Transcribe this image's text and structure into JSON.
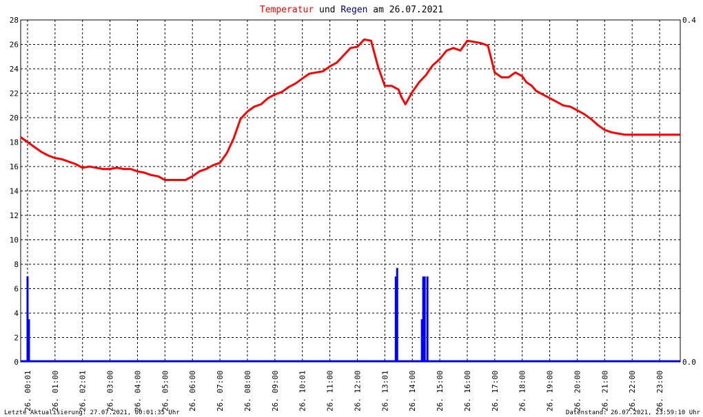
{
  "title": {
    "part1": "Temperatur",
    "part2": " und ",
    "part3": "Regen",
    "part4": " am 26.07.2021",
    "color_temp": "#ff0000",
    "color_rain": "#000080",
    "color_text": "#000000"
  },
  "footer": {
    "left": "Letzte Aktualisierung: 27.07.2021, 00:01:35 Uhr",
    "right": "Datenstand: 26.07.2021, 23:59:10 Uhr"
  },
  "chart_data": {
    "type": "line",
    "x_unit": "hours",
    "x_range": [
      0,
      24
    ],
    "y_left": {
      "range": [
        0,
        28
      ],
      "ticks": [
        0,
        2,
        4,
        6,
        8,
        10,
        12,
        14,
        16,
        18,
        20,
        22,
        24,
        26,
        28
      ]
    },
    "y_right": {
      "range": [
        0,
        0.4
      ],
      "tick_labels": [
        "0.0",
        "0.4"
      ]
    },
    "x_tick_labels": [
      "26. 00:01",
      "26. 01:00",
      "26. 02:01",
      "26. 03:00",
      "26. 04:00",
      "26. 05:00",
      "26. 06:00",
      "26. 07:00",
      "26. 08:00",
      "26. 09:00",
      "26. 10:01",
      "26. 11:00",
      "26. 12:00",
      "26. 13:01",
      "26. 14:00",
      "26. 15:00",
      "26. 16:00",
      "26. 17:00",
      "26. 18:00",
      "26. 19:00",
      "26. 20:00",
      "26. 21:00",
      "26. 22:00",
      "26. 23:00"
    ],
    "grid": true,
    "series": [
      {
        "color": "#ff0000",
        "axis": "left",
        "x": [
          0,
          0.25,
          0.5,
          0.75,
          1.0,
          1.25,
          1.5,
          1.75,
          2.0,
          2.25,
          2.5,
          2.75,
          3.0,
          3.25,
          3.5,
          3.75,
          4.0,
          4.25,
          4.5,
          4.75,
          5.0,
          5.25,
          5.5,
          5.75,
          6.0,
          6.25,
          6.5,
          6.75,
          7.0,
          7.25,
          7.5,
          7.75,
          8.0,
          8.25,
          8.5,
          8.75,
          9.0,
          9.25,
          9.5,
          9.75,
          10.0,
          10.25,
          10.5,
          10.75,
          11.0,
          11.25,
          11.5,
          11.75,
          12.0,
          12.25,
          12.5,
          12.75,
          13.0,
          13.25,
          13.5,
          13.75,
          13.85,
          14.0,
          14.25,
          14.5,
          14.75,
          14.9,
          15.0,
          15.25,
          15.5,
          15.75,
          16.0,
          16.25,
          16.5,
          16.75,
          17.0,
          17.25,
          17.5,
          17.75,
          18.0,
          18.25,
          18.4,
          18.6,
          18.75,
          19.0,
          19.25,
          19.5,
          19.75,
          20.0,
          20.25,
          20.5,
          20.75,
          21.0,
          21.25,
          21.5,
          21.75,
          22.0,
          22.25,
          22.5,
          22.75,
          23.0,
          23.25,
          23.5,
          23.75,
          23.99
        ],
        "values": [
          18.4,
          18.0,
          17.6,
          17.2,
          16.9,
          16.7,
          16.6,
          16.4,
          16.2,
          15.9,
          16.0,
          15.9,
          15.8,
          15.8,
          15.9,
          15.8,
          15.8,
          15.6,
          15.5,
          15.3,
          15.2,
          14.9,
          14.9,
          14.9,
          14.9,
          15.2,
          15.6,
          15.8,
          16.1,
          16.3,
          17.1,
          18.3,
          19.9,
          20.5,
          20.9,
          21.1,
          21.6,
          21.9,
          22.1,
          22.5,
          22.8,
          23.2,
          23.6,
          23.7,
          23.8,
          24.2,
          24.5,
          25.1,
          25.7,
          25.8,
          26.4,
          26.3,
          24.2,
          22.6,
          22.6,
          22.3,
          21.7,
          21.1,
          22.1,
          22.9,
          23.5,
          24.0,
          24.3,
          24.8,
          25.5,
          25.7,
          25.5,
          26.3,
          26.2,
          26.1,
          25.9,
          23.7,
          23.3,
          23.3,
          23.7,
          23.4,
          22.9,
          22.6,
          22.2,
          21.9,
          21.6,
          21.3,
          21.0,
          20.9,
          20.6,
          20.3,
          19.9,
          19.4,
          19.0,
          18.8,
          18.7,
          18.6,
          18.6,
          18.6,
          18.6,
          18.6,
          18.6,
          18.6,
          18.6,
          18.6
        ]
      },
      {
        "color": "#0000ff",
        "axis": "right",
        "x": [
          0.25,
          0.3,
          13.65,
          13.7,
          14.6,
          14.65,
          14.7,
          14.8
        ],
        "values": [
          0.1,
          0.05,
          0.1,
          0.11,
          0.05,
          0.1,
          0.1,
          0.1
        ]
      }
    ]
  }
}
